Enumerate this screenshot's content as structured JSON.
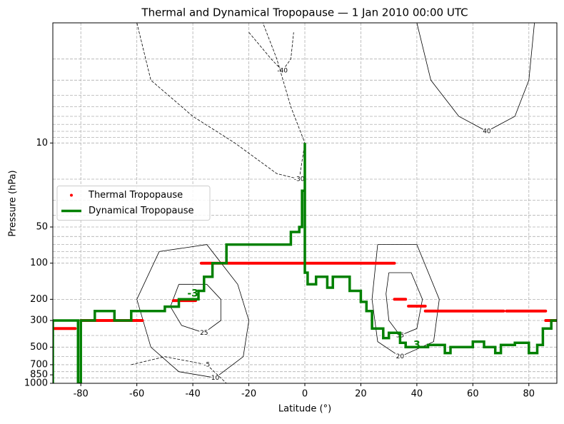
{
  "chart_data": {
    "type": "line",
    "title": "Thermal and Dynamical Tropopause — 1 Jan 2010 00:00 UTC",
    "x_label": "Latitude (°)",
    "y_label": "Pressure (hPa)",
    "xlim": [
      -90,
      90
    ],
    "ylim": [
      1000,
      1
    ],
    "y_scale": "log",
    "xticks": [
      -80,
      -60,
      -40,
      -20,
      0,
      20,
      40,
      60,
      80
    ],
    "yticks": [
      10,
      50,
      100,
      200,
      300,
      500,
      700,
      850,
      1000
    ],
    "grid": true,
    "legend_loc": "center left",
    "series": [
      {
        "name": "Thermal Tropopause",
        "color": "#ff0000",
        "style": "dots",
        "x": [
          -90,
          -82,
          null,
          -80,
          -58,
          null,
          -47,
          -39,
          null,
          -37,
          32,
          null,
          32,
          36,
          null,
          37,
          43,
          null,
          43,
          71,
          null,
          72,
          86,
          null,
          86,
          90
        ],
        "y": [
          350,
          350,
          null,
          300,
          300,
          null,
          205,
          205,
          null,
          100,
          100,
          null,
          200,
          200,
          null,
          228,
          228,
          null,
          250,
          250,
          null,
          250,
          250,
          null,
          300,
          300
        ]
      },
      {
        "name": "Dynamical Tropopause",
        "color": "#008000",
        "style": "line",
        "x": [
          -90,
          -90,
          -81,
          -81,
          -80,
          -80,
          -75,
          -75,
          -68,
          -68,
          -62,
          -62,
          -50,
          -50,
          -45,
          -45,
          -38,
          -38,
          -36,
          -36,
          -33,
          -33,
          -28,
          -28,
          -5,
          -5,
          -2,
          -2,
          -1,
          -1,
          0,
          0,
          0,
          1,
          1,
          4,
          4,
          8,
          8,
          10,
          10,
          16,
          16,
          20,
          20,
          22,
          22,
          24,
          24,
          28,
          28,
          30,
          30,
          34,
          34,
          36,
          36,
          44,
          44,
          50,
          50,
          52,
          52,
          60,
          60,
          64,
          64,
          68,
          68,
          70,
          70,
          75,
          75,
          80,
          80,
          83,
          83,
          85,
          85,
          88,
          88,
          90
        ],
        "y": [
          1000,
          300,
          300,
          1000,
          1000,
          300,
          300,
          250,
          250,
          300,
          300,
          250,
          250,
          230,
          230,
          200,
          200,
          170,
          170,
          130,
          130,
          100,
          100,
          70,
          70,
          55,
          55,
          50,
          50,
          25,
          25,
          10,
          120,
          120,
          150,
          150,
          130,
          130,
          160,
          160,
          130,
          130,
          170,
          170,
          210,
          210,
          250,
          250,
          350,
          350,
          420,
          420,
          380,
          380,
          460,
          460,
          500,
          500,
          480,
          480,
          560,
          560,
          500,
          500,
          450,
          450,
          500,
          500,
          560,
          560,
          480,
          480,
          460,
          460,
          560,
          560,
          480,
          480,
          350,
          350,
          300,
          300
        ]
      }
    ],
    "contour_color": "#000000",
    "contours": [
      {
        "level": 25,
        "x": [
          -45,
          -35,
          -30,
          -30,
          -36,
          -44,
          -48,
          -45
        ],
        "y": [
          150,
          150,
          200,
          300,
          380,
          330,
          230,
          150
        ]
      },
      {
        "level": 10,
        "x": [
          -52,
          -35,
          -24,
          -20,
          -22,
          -32,
          -45,
          -55,
          -60,
          -52
        ],
        "y": [
          80,
          70,
          150,
          300,
          600,
          900,
          800,
          500,
          200,
          80
        ]
      },
      {
        "level": 35,
        "x": [
          30,
          38,
          42,
          40,
          34,
          30,
          29,
          30
        ],
        "y": [
          120,
          120,
          200,
          350,
          400,
          300,
          180,
          120
        ]
      },
      {
        "level": 20,
        "x": [
          26,
          40,
          48,
          46,
          34,
          26,
          24,
          26
        ],
        "y": [
          70,
          70,
          200,
          450,
          600,
          450,
          200,
          70
        ]
      },
      {
        "level": -40,
        "x": [
          -20,
          -12,
          -8,
          -5,
          -4
        ],
        "y": [
          1.2,
          2,
          2.5,
          2,
          1.2
        ]
      },
      {
        "level": -30,
        "x": [
          -60,
          -55,
          -40,
          -25,
          -10,
          -2,
          0,
          -5,
          -10,
          -15
        ],
        "y": [
          1,
          3,
          6,
          10,
          18,
          20,
          10,
          5,
          2,
          1
        ]
      },
      {
        "level": 40,
        "x": [
          40,
          45,
          55,
          65,
          75,
          80,
          82
        ],
        "y": [
          1,
          3,
          6,
          8,
          6,
          3,
          1
        ]
      },
      {
        "level": -5,
        "x": [
          -62,
          -50,
          -35,
          -28
        ],
        "y": [
          700,
          600,
          700,
          1000
        ]
      }
    ],
    "annotations": [
      {
        "text": "-3",
        "x": -40,
        "y": 180,
        "color": "#008000"
      },
      {
        "text": "3",
        "x": 40,
        "y": 480,
        "color": "#008000"
      }
    ]
  }
}
